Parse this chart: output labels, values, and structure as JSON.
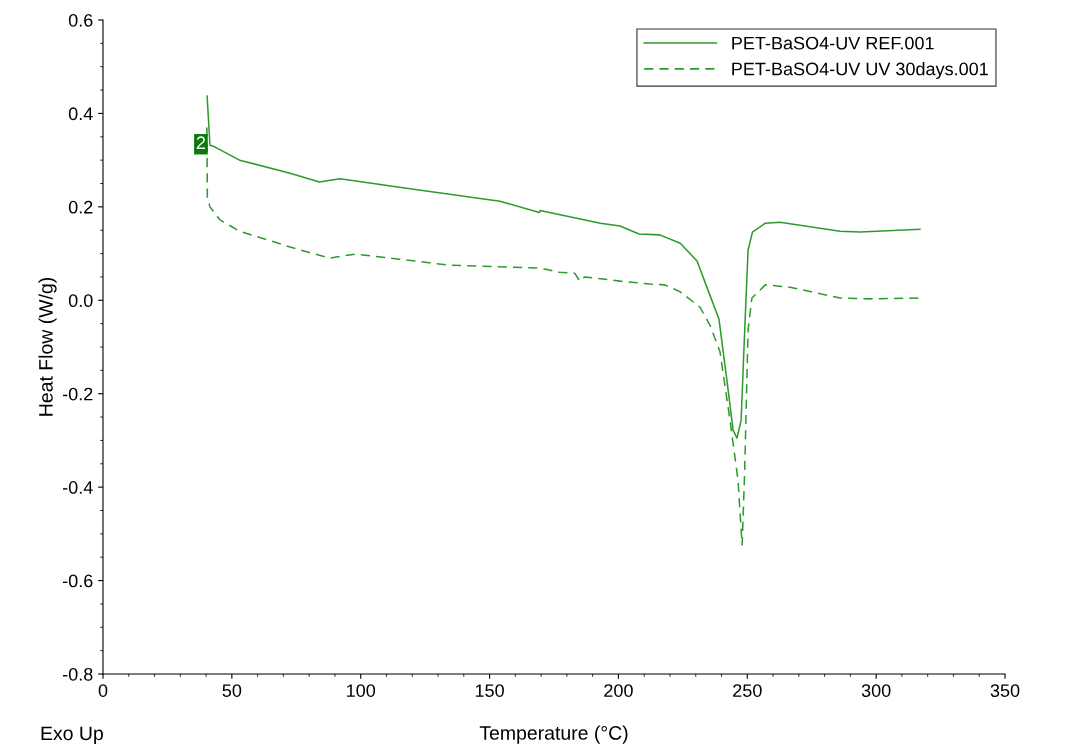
{
  "chart_data": {
    "type": "line",
    "xlabel": "Temperature (°C)",
    "ylabel": "Heat Flow (W/g)",
    "xlim": [
      0,
      350
    ],
    "xticks": [
      0,
      50,
      100,
      150,
      200,
      250,
      300,
      350
    ],
    "ylim": [
      -0.8,
      0.6
    ],
    "yticks": [
      -0.8,
      -0.6,
      -0.4,
      -0.2,
      {
        "value": 0,
        "label": "0.0"
      },
      0.2,
      0.4,
      0.6
    ],
    "grid": false,
    "legend": "top right",
    "marker": "none",
    "series": [
      {
        "name": "PET-BaSO4-UV REF.001",
        "color": "#2e9a2e",
        "line_style": "solid",
        "x": [
          40.4,
          41.5,
          43.5,
          53,
          72.6,
          84,
          92,
          115,
          154,
          169.3,
          169.6,
          193,
          200.6,
          208,
          216,
          224,
          230.5,
          235,
          239,
          242,
          244.5,
          246,
          247.6,
          249,
          250.3,
          252,
          257,
          262.7,
          286,
          293.7,
          317
        ],
        "values": [
          0.437,
          0.332,
          0.328,
          0.3,
          0.272,
          0.253,
          0.26,
          0.242,
          0.212,
          0.188,
          0.192,
          0.165,
          0.159,
          0.142,
          0.14,
          0.122,
          0.084,
          0.018,
          -0.04,
          -0.167,
          -0.278,
          -0.295,
          -0.257,
          -0.064,
          0.107,
          0.146,
          0.165,
          0.167,
          0.148,
          0.146,
          0.152
        ]
      },
      {
        "name": "PET-BaSO4-UV UV 30days.001",
        "color": "#2e9a2e",
        "line_style": "dashed",
        "x": [
          40.3,
          40.5,
          41.5,
          45.4,
          53,
          72.6,
          88,
          92,
          98,
          115,
          134.7,
          169.6,
          177,
          183,
          185,
          187,
          200.6,
          212,
          218,
          224,
          231.7,
          235.5,
          239.4,
          243.3,
          246.4,
          248,
          249,
          250.3,
          251.8,
          257,
          266.6,
          286,
          297.6,
          317
        ],
        "values": [
          0.37,
          0.22,
          0.2,
          0.172,
          0.148,
          0.114,
          0.09,
          0.094,
          0.099,
          0.088,
          0.075,
          0.069,
          0.06,
          0.058,
          0.041,
          0.05,
          0.041,
          0.035,
          0.033,
          0.018,
          -0.015,
          -0.053,
          -0.11,
          -0.257,
          -0.385,
          -0.524,
          -0.364,
          -0.064,
          0.005,
          0.033,
          0.028,
          0.005,
          0.003,
          0.005
        ]
      }
    ],
    "annotations": [
      {
        "text": "2",
        "x": 38,
        "y": 0.334
      },
      "Exo Up"
    ]
  }
}
